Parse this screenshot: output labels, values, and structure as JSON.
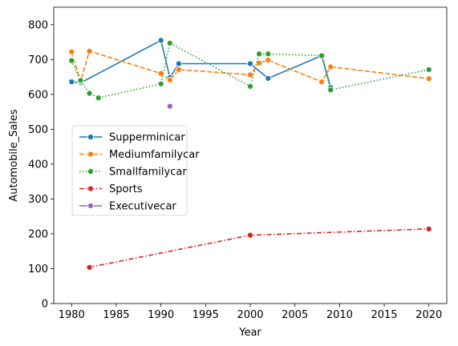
{
  "chart_data": {
    "type": "line",
    "title": "",
    "xlabel": "Year",
    "ylabel": "Automobile_Sales",
    "xlim": [
      1978,
      2022
    ],
    "ylim": [
      0,
      850
    ],
    "xticks": [
      1980,
      1985,
      1990,
      1995,
      2000,
      2005,
      2010,
      2015,
      2020
    ],
    "yticks": [
      0,
      100,
      200,
      300,
      400,
      500,
      600,
      700,
      800
    ],
    "grid": false,
    "legend_position": "center-left",
    "series": [
      {
        "name": "Supperminicar",
        "color": "#1f77b4",
        "linestyle": "solid",
        "points": [
          [
            1980,
            636
          ],
          [
            1981,
            633
          ],
          [
            1990,
            755
          ],
          [
            1991,
            648
          ],
          [
            1992,
            688
          ],
          [
            2000,
            688
          ],
          [
            2002,
            646
          ],
          [
            2008,
            711
          ],
          [
            2009,
            620
          ]
        ]
      },
      {
        "name": "Mediumfamilycar",
        "color": "#ff7f0e",
        "linestyle": "dashed",
        "points": [
          [
            1980,
            722
          ],
          [
            1981,
            637
          ],
          [
            1982,
            724
          ],
          [
            1990,
            660
          ],
          [
            1991,
            641
          ],
          [
            1992,
            671
          ],
          [
            2000,
            656
          ],
          [
            2001,
            690
          ],
          [
            2002,
            698
          ],
          [
            2008,
            636
          ],
          [
            2009,
            679
          ],
          [
            2020,
            645
          ]
        ]
      },
      {
        "name": "Smallfamilycar",
        "color": "#2ca02c",
        "linestyle": "dotted",
        "points": [
          [
            1980,
            697
          ],
          [
            1981,
            640
          ],
          [
            1982,
            603
          ],
          [
            1983,
            590
          ],
          [
            1990,
            630
          ],
          [
            1991,
            747
          ],
          [
            2000,
            623
          ],
          [
            2001,
            716
          ],
          [
            2002,
            716
          ],
          [
            2008,
            711
          ],
          [
            2009,
            613
          ],
          [
            2020,
            671
          ]
        ]
      },
      {
        "name": "Sports",
        "color": "#d62728",
        "linestyle": "dashdot",
        "points": [
          [
            1982,
            104
          ],
          [
            2000,
            196
          ],
          [
            2020,
            214
          ]
        ]
      },
      {
        "name": "Executivecar",
        "color": "#9467bd",
        "linestyle": "solid",
        "points": [
          [
            1991,
            566
          ]
        ]
      }
    ]
  }
}
